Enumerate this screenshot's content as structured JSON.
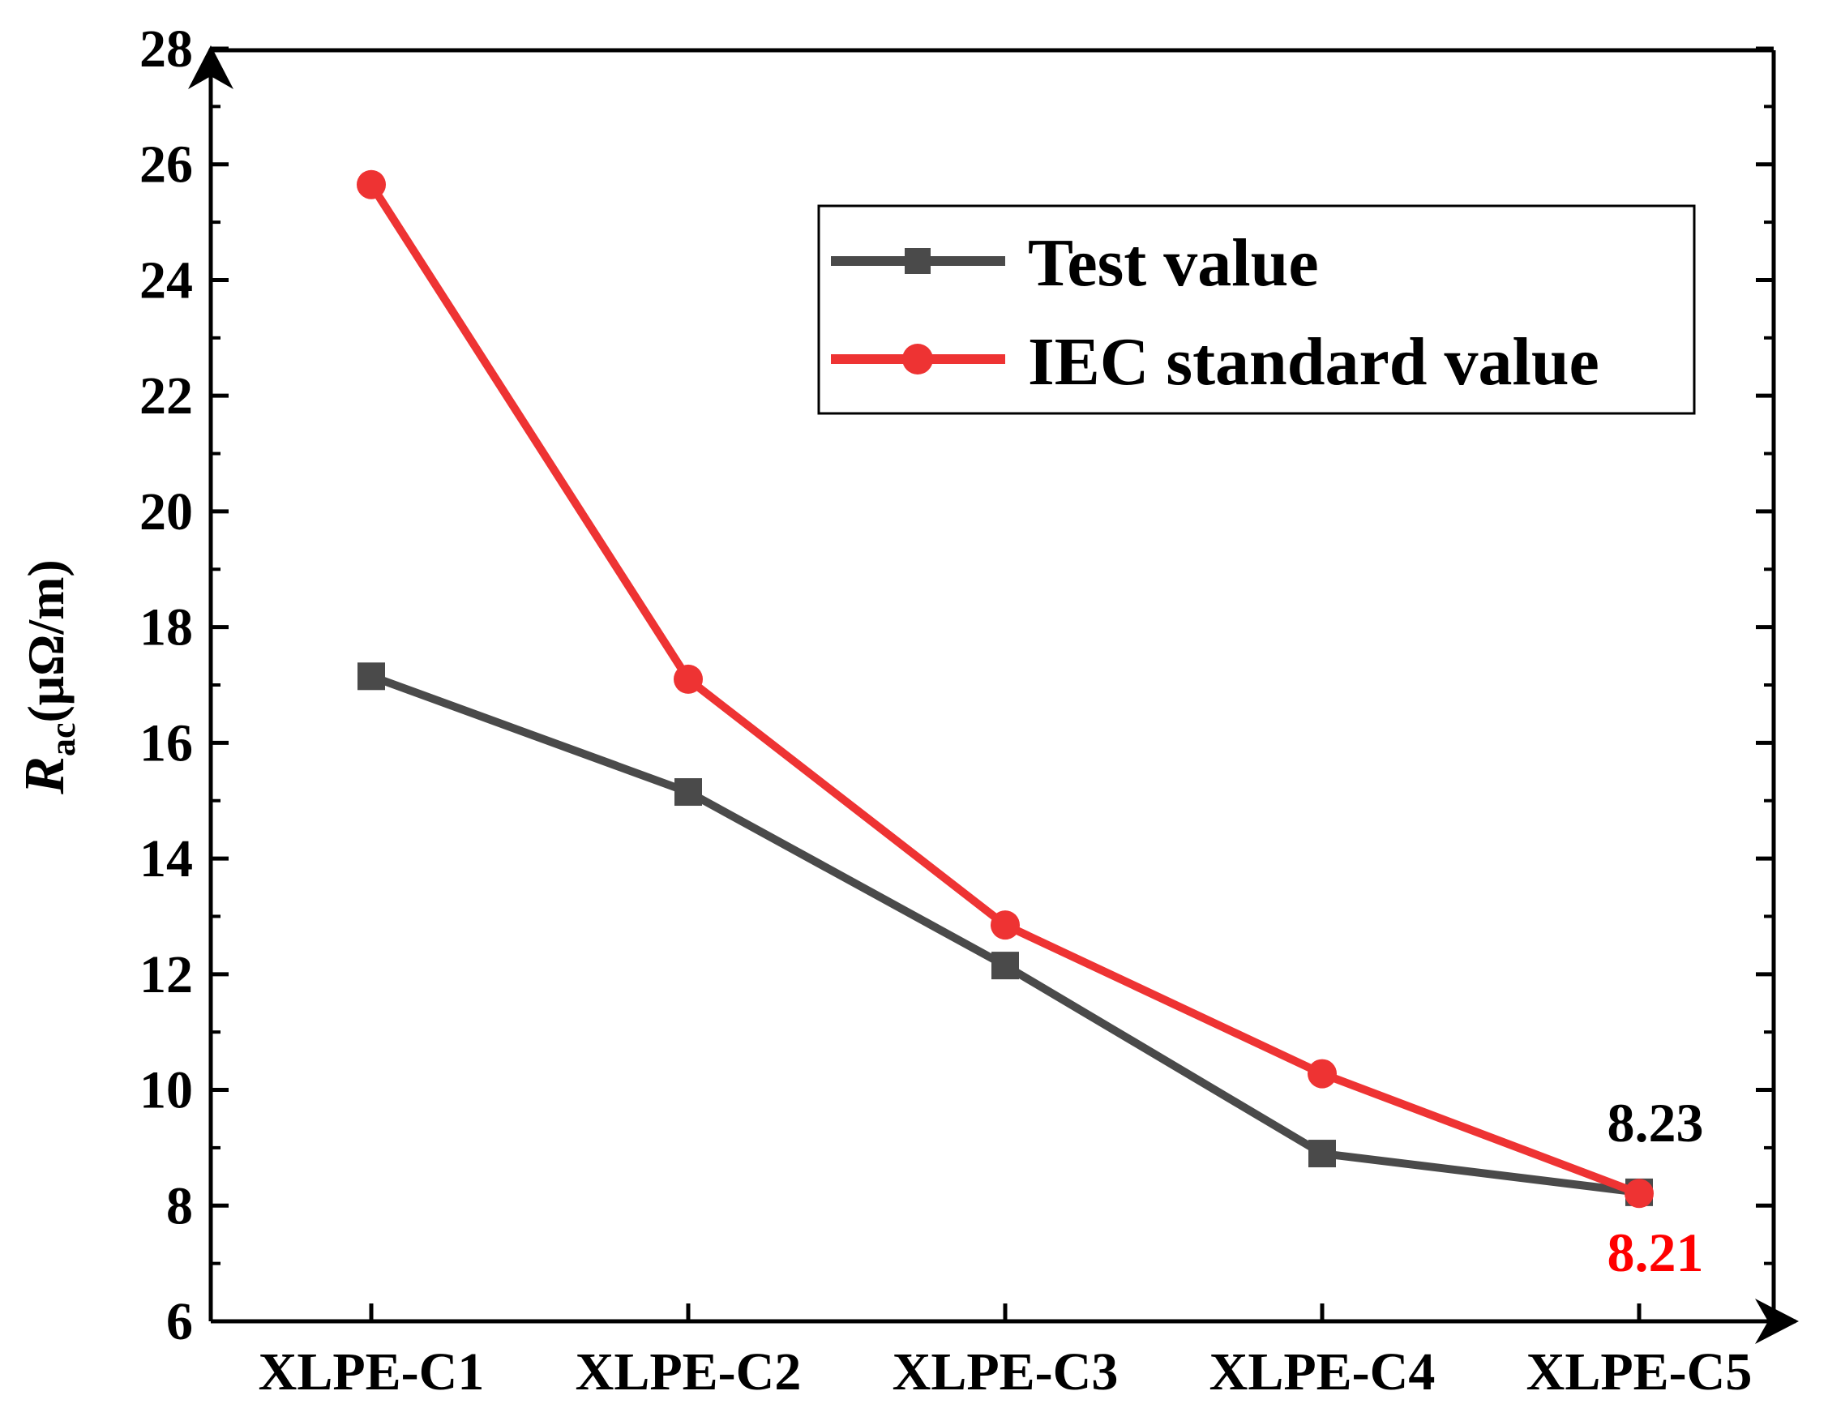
{
  "chart_data": {
    "type": "line",
    "title": "",
    "xlabel": "",
    "ylabel": {
      "main": "R",
      "sub": "ac",
      "unit": "(μΩ/m)"
    },
    "categories": [
      "XLPE-C1",
      "XLPE-C2",
      "XLPE-C3",
      "XLPE-C4",
      "XLPE-C5"
    ],
    "ylim": [
      6,
      28
    ],
    "yticks": [
      6,
      8,
      10,
      12,
      14,
      16,
      18,
      20,
      22,
      24,
      26,
      28
    ],
    "series": [
      {
        "name": "Test value",
        "marker": "square",
        "color": "#4a4a4a",
        "values": [
          17.15,
          15.15,
          12.15,
          8.9,
          8.23
        ]
      },
      {
        "name": "IEC standard value",
        "marker": "circle",
        "color": "#ee3333",
        "values": [
          25.65,
          17.1,
          12.85,
          10.28,
          8.21
        ]
      }
    ],
    "legend": {
      "position": "top-right"
    },
    "annotations": [
      {
        "text": "8.23",
        "series": "Test value",
        "category": "XLPE-C5",
        "color": "#000000"
      },
      {
        "text": "8.21",
        "series": "IEC standard value",
        "category": "XLPE-C5",
        "color": "#ff0000"
      }
    ]
  }
}
